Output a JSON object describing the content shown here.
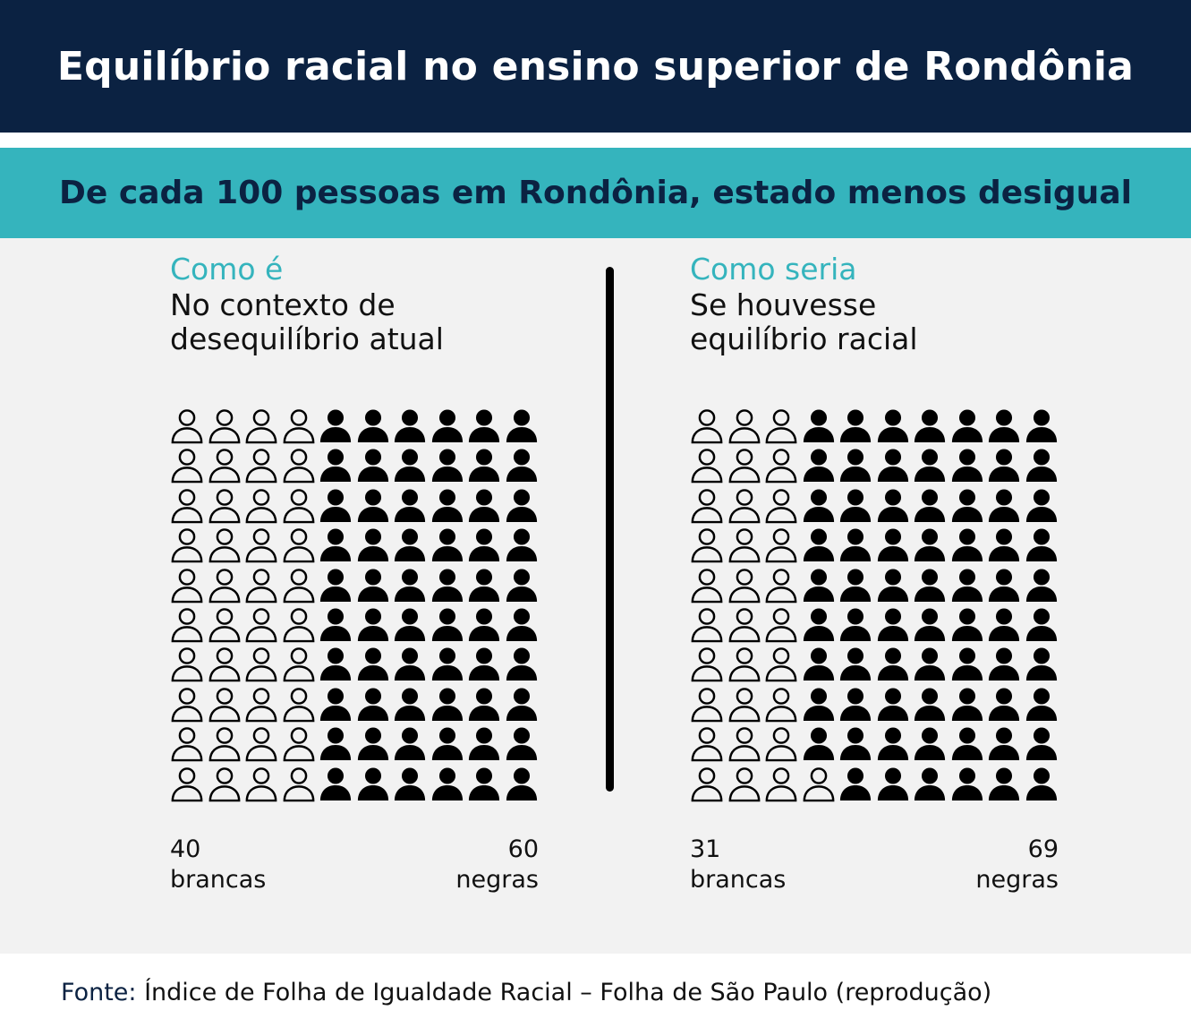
{
  "title": "Equilíbrio racial no ensino superior de Rondônia",
  "subtitle": "De cada 100 pessoas em Rondônia, estado menos desigual",
  "colors": {
    "header_bg": "#0b2242",
    "accent": "#35b4bd",
    "panel_bg": "#f2f2f2",
    "ink": "#000000"
  },
  "icons": {
    "outline": "person-outline-icon",
    "filled": "person-filled-icon"
  },
  "panels": [
    {
      "label": "Como é",
      "caption_line1": "No contexto de",
      "caption_line2": "desequilíbrio atual",
      "white_count": "40",
      "white_label": "brancas",
      "black_count": "60",
      "black_label": "negras"
    },
    {
      "label": "Como seria",
      "caption_line1": "Se houvesse",
      "caption_line2": "equilíbrio racial",
      "white_count": "31",
      "white_label": "brancas",
      "black_count": "69",
      "black_label": "negras"
    }
  ],
  "footer": {
    "label": "Fonte:",
    "text": " Índice de Folha de Igualdade Racial – Folha de São Paulo (reprodução)"
  },
  "chart_data": [
    {
      "type": "waffle",
      "title": "Como é",
      "subtitle": "No contexto de desequilíbrio atual",
      "total": 100,
      "rows": 10,
      "cols": 10,
      "categories": [
        "brancas",
        "negras"
      ],
      "values": [
        40,
        60
      ]
    },
    {
      "type": "waffle",
      "title": "Como seria",
      "subtitle": "Se houvesse equilíbrio racial",
      "total": 100,
      "rows": 10,
      "cols": 10,
      "categories": [
        "brancas",
        "negras"
      ],
      "values": [
        31,
        69
      ]
    }
  ]
}
